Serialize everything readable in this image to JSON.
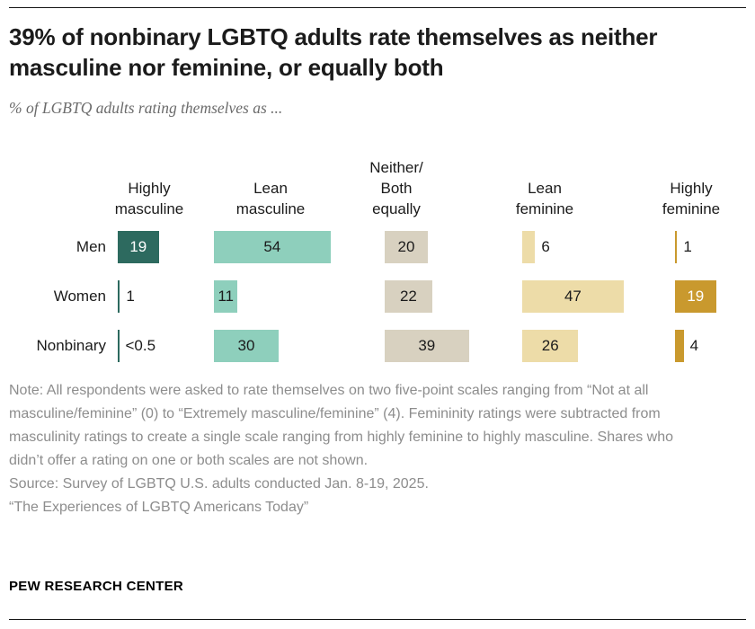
{
  "title": "39% of nonbinary LGBTQ adults rate themselves as neither masculine nor feminine, or equally both",
  "subtitle": "% of LGBTQ adults rating themselves as ...",
  "chart_data": {
    "type": "bar",
    "orientation": "horizontal",
    "unit": "%",
    "categories": [
      "Men",
      "Women",
      "Nonbinary"
    ],
    "columns": [
      {
        "label": "Highly\nmasculine",
        "color": "#2d6a5f"
      },
      {
        "label": "Lean\nmasculine",
        "color": "#8ecfbc"
      },
      {
        "label": "Neither/\nBoth\nequally",
        "color": "#d8d1c0"
      },
      {
        "label": "Lean\nfeminine",
        "color": "#eddca8"
      },
      {
        "label": "Highly\nfeminine",
        "color": "#c9992e"
      }
    ],
    "rows": [
      {
        "label": "Men",
        "values": [
          {
            "display": "19",
            "value": 19,
            "label_inside": true,
            "label_white": true
          },
          {
            "display": "54",
            "value": 54,
            "label_inside": true,
            "label_white": false
          },
          {
            "display": "20",
            "value": 20,
            "label_inside": true,
            "label_white": false
          },
          {
            "display": "6",
            "value": 6,
            "label_inside": false,
            "label_white": false
          },
          {
            "display": "1",
            "value": 1,
            "label_inside": false,
            "label_white": false
          }
        ]
      },
      {
        "label": "Women",
        "values": [
          {
            "display": "1",
            "value": 1,
            "label_inside": false,
            "label_white": false
          },
          {
            "display": "11",
            "value": 11,
            "label_inside": true,
            "label_white": false
          },
          {
            "display": "22",
            "value": 22,
            "label_inside": true,
            "label_white": false
          },
          {
            "display": "47",
            "value": 47,
            "label_inside": true,
            "label_white": false
          },
          {
            "display": "19",
            "value": 19,
            "label_inside": true,
            "label_white": true
          }
        ]
      },
      {
        "label": "Nonbinary",
        "values": [
          {
            "display": "<0.5",
            "value": 0.5,
            "label_inside": false,
            "label_white": false
          },
          {
            "display": "30",
            "value": 30,
            "label_inside": true,
            "label_white": false
          },
          {
            "display": "39",
            "value": 39,
            "label_inside": true,
            "label_white": false
          },
          {
            "display": "26",
            "value": 26,
            "label_inside": true,
            "label_white": false
          },
          {
            "display": "4",
            "value": 4,
            "label_inside": false,
            "label_white": false
          }
        ]
      }
    ]
  },
  "note": "Note: All respondents were asked to rate themselves on two five-point scales ranging from “Not at all masculine/feminine” (0) to “Extremely masculine/feminine” (4). Femininity ratings were subtracted from masculinity ratings to create a single scale ranging from highly feminine to highly masculine. Shares who didn’t offer a rating on one or both scales are not shown.",
  "source": "Source: Survey of LGBTQ U.S. adults conducted Jan. 8-19, 2025.",
  "report": "“The Experiences of LGBTQ Americans Today”",
  "footer": "PEW RESEARCH CENTER"
}
